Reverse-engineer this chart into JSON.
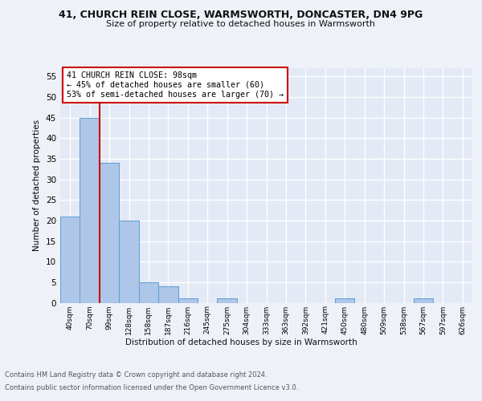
{
  "title_line1": "41, CHURCH REIN CLOSE, WARMSWORTH, DONCASTER, DN4 9PG",
  "title_line2": "Size of property relative to detached houses in Warmsworth",
  "xlabel": "Distribution of detached houses by size in Warmsworth",
  "ylabel": "Number of detached properties",
  "bin_labels": [
    "40sqm",
    "70sqm",
    "99sqm",
    "128sqm",
    "158sqm",
    "187sqm",
    "216sqm",
    "245sqm",
    "275sqm",
    "304sqm",
    "333sqm",
    "363sqm",
    "392sqm",
    "421sqm",
    "450sqm",
    "480sqm",
    "509sqm",
    "538sqm",
    "567sqm",
    "597sqm",
    "626sqm"
  ],
  "counts": [
    21,
    45,
    34,
    20,
    5,
    4,
    1,
    0,
    1,
    0,
    0,
    0,
    0,
    0,
    1,
    0,
    0,
    0,
    1,
    0,
    0
  ],
  "bar_color": "#aec6e8",
  "bar_edge_color": "#5a9fd4",
  "marker_color": "#cc0000",
  "annotation_title": "41 CHURCH REIN CLOSE: 98sqm",
  "annotation_line2": "← 45% of detached houses are smaller (60)",
  "annotation_line3": "53% of semi-detached houses are larger (70) →",
  "annotation_box_color": "#ffffff",
  "annotation_box_edge": "#cc0000",
  "ylim": [
    0,
    57
  ],
  "yticks": [
    0,
    5,
    10,
    15,
    20,
    25,
    30,
    35,
    40,
    45,
    50,
    55
  ],
  "footer_line1": "Contains HM Land Registry data © Crown copyright and database right 2024.",
  "footer_line2": "Contains public sector information licensed under the Open Government Licence v3.0.",
  "bg_color": "#eef2f8",
  "plot_bg_color": "#e4eaf5"
}
